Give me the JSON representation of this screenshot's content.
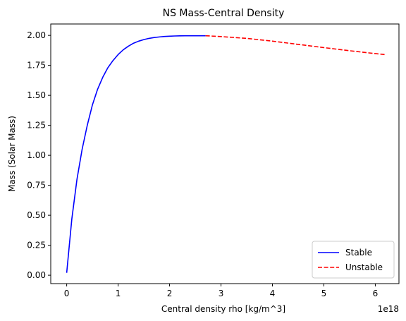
{
  "chart_data": {
    "type": "line",
    "title": "NS Mass-Central Density",
    "xlabel": "Central density rho [kg/m^3]",
    "ylabel": "Mass (Solar Mass)",
    "x_offset_label": "1e18",
    "x_scale": 1e+18,
    "xlim": [
      -0.31,
      6.46
    ],
    "ylim": [
      -0.07,
      2.095
    ],
    "xticks": [
      0,
      1,
      2,
      3,
      4,
      5,
      6
    ],
    "xtick_labels": [
      "0",
      "1",
      "2",
      "3",
      "4",
      "5",
      "6"
    ],
    "yticks": [
      0,
      0.25,
      0.5,
      0.75,
      1.0,
      1.25,
      1.5,
      1.75,
      2.0
    ],
    "ytick_labels": [
      "0.00",
      "0.25",
      "0.50",
      "0.75",
      "1.00",
      "1.25",
      "1.50",
      "1.75",
      "2.00"
    ],
    "grid": false,
    "legend_position": "bottom-right",
    "series": [
      {
        "name": "Stable",
        "color": "#0000ff",
        "style": "solid",
        "x": [
          0.0,
          0.1,
          0.2,
          0.3,
          0.4,
          0.5,
          0.6,
          0.7,
          0.8,
          0.9,
          1.0,
          1.1,
          1.2,
          1.3,
          1.4,
          1.5,
          1.6,
          1.7,
          1.8,
          1.9,
          2.0,
          2.1,
          2.2,
          2.3,
          2.4,
          2.5,
          2.6,
          2.7
        ],
        "y": [
          0.02,
          0.47,
          0.8,
          1.05,
          1.25,
          1.42,
          1.55,
          1.65,
          1.73,
          1.79,
          1.84,
          1.88,
          1.91,
          1.935,
          1.952,
          1.965,
          1.975,
          1.982,
          1.987,
          1.991,
          1.993,
          1.995,
          1.996,
          1.997,
          1.997,
          1.997,
          1.997,
          1.997
        ]
      },
      {
        "name": "Unstable",
        "color": "#ff0000",
        "style": "dashed",
        "x": [
          2.7,
          3.0,
          3.5,
          4.0,
          4.5,
          5.0,
          5.5,
          6.0,
          6.18
        ],
        "y": [
          1.997,
          1.99,
          1.975,
          1.952,
          1.925,
          1.898,
          1.872,
          1.848,
          1.84
        ]
      }
    ]
  }
}
